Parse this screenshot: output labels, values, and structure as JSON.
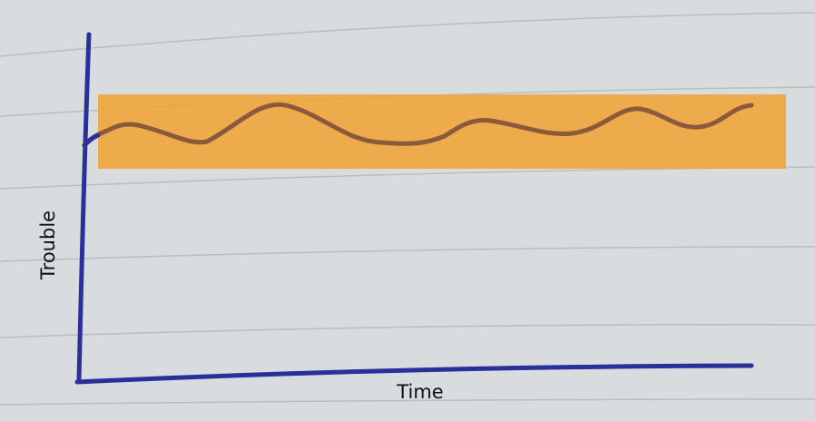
{
  "axes": {
    "x_label": "Time",
    "y_label": "Trouble"
  }
}
